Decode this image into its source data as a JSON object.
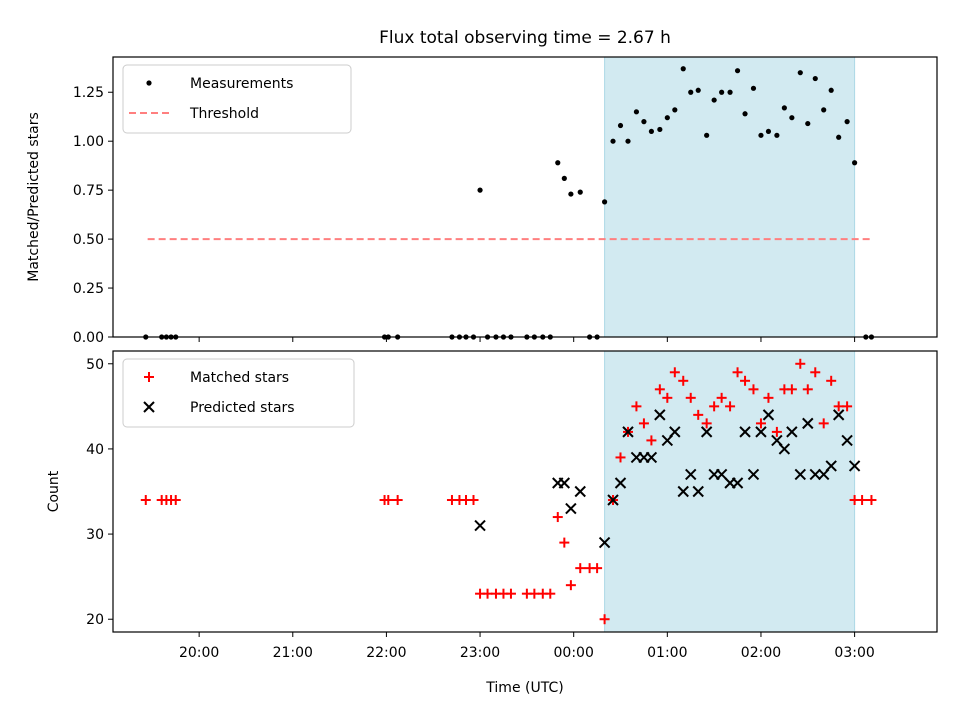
{
  "title": "Flux total observing time = 2.67 h",
  "colors": {
    "measurement": "#000000",
    "threshold": "#ff7f7f",
    "matched": "#ff0000",
    "predicted": "#000000",
    "span": "#add8e6"
  },
  "chart_data": [
    {
      "type": "scatter",
      "ylabel": "Matched/Predicted stars",
      "ylim": [
        0,
        1.43
      ],
      "xlim_hours": [
        19.08,
        27.88
      ],
      "yticks": [
        "0.00",
        "0.25",
        "0.50",
        "0.75",
        "1.00",
        "1.25"
      ],
      "ytick_values": [
        0,
        0.25,
        0.5,
        0.75,
        1.0,
        1.25
      ],
      "legend": {
        "position": "top-left",
        "entries": [
          "Measurements",
          "Threshold"
        ]
      },
      "shaded_span_hours": [
        24.33,
        27.0
      ],
      "threshold": {
        "value": 0.5,
        "x_hours": [
          19.45,
          27.18
        ]
      },
      "series": [
        {
          "name": "Measurements",
          "points": [
            [
              19.43,
              0
            ],
            [
              19.6,
              0
            ],
            [
              19.65,
              0
            ],
            [
              19.7,
              0
            ],
            [
              19.75,
              0
            ],
            [
              21.98,
              0
            ],
            [
              22.02,
              0
            ],
            [
              22.12,
              0
            ],
            [
              22.7,
              0
            ],
            [
              22.78,
              0
            ],
            [
              22.85,
              0
            ],
            [
              22.93,
              0
            ],
            [
              23.0,
              0.75
            ],
            [
              23.08,
              0
            ],
            [
              23.17,
              0
            ],
            [
              23.25,
              0
            ],
            [
              23.33,
              0
            ],
            [
              23.5,
              0
            ],
            [
              23.58,
              0
            ],
            [
              23.67,
              0
            ],
            [
              23.75,
              0
            ],
            [
              23.83,
              0.89
            ],
            [
              23.9,
              0.81
            ],
            [
              23.97,
              0.73
            ],
            [
              24.07,
              0.74
            ],
            [
              24.17,
              0
            ],
            [
              24.25,
              0
            ],
            [
              24.33,
              0.69
            ],
            [
              24.42,
              1.0
            ],
            [
              24.5,
              1.08
            ],
            [
              24.58,
              1.0
            ],
            [
              24.67,
              1.15
            ],
            [
              24.75,
              1.1
            ],
            [
              24.83,
              1.05
            ],
            [
              24.92,
              1.06
            ],
            [
              25.0,
              1.12
            ],
            [
              25.08,
              1.16
            ],
            [
              25.17,
              1.37
            ],
            [
              25.25,
              1.25
            ],
            [
              25.33,
              1.26
            ],
            [
              25.42,
              1.03
            ],
            [
              25.5,
              1.21
            ],
            [
              25.58,
              1.25
            ],
            [
              25.67,
              1.25
            ],
            [
              25.75,
              1.36
            ],
            [
              25.83,
              1.14
            ],
            [
              25.92,
              1.27
            ],
            [
              26.0,
              1.03
            ],
            [
              26.08,
              1.05
            ],
            [
              26.17,
              1.03
            ],
            [
              26.25,
              1.17
            ],
            [
              26.33,
              1.12
            ],
            [
              26.42,
              1.35
            ],
            [
              26.5,
              1.09
            ],
            [
              26.58,
              1.32
            ],
            [
              26.67,
              1.16
            ],
            [
              26.75,
              1.26
            ],
            [
              26.83,
              1.02
            ],
            [
              26.92,
              1.1
            ],
            [
              27.0,
              0.89
            ],
            [
              27.12,
              0
            ],
            [
              27.18,
              0
            ]
          ]
        }
      ]
    },
    {
      "type": "scatter",
      "xlabel": "Time (UTC)",
      "ylabel": "Count",
      "ylim": [
        18.5,
        51.5
      ],
      "xlim_hours": [
        19.08,
        27.88
      ],
      "yticks": [
        "20",
        "30",
        "40",
        "50"
      ],
      "ytick_values": [
        20,
        30,
        40,
        50
      ],
      "xticks": [
        "20:00",
        "21:00",
        "22:00",
        "23:00",
        "00:00",
        "01:00",
        "02:00",
        "03:00"
      ],
      "xtick_hours": [
        20,
        21,
        22,
        23,
        24,
        25,
        26,
        27
      ],
      "legend": {
        "position": "top-left",
        "entries": [
          "Matched stars",
          "Predicted stars"
        ]
      },
      "shaded_span_hours": [
        24.33,
        27.0
      ],
      "series": [
        {
          "name": "Matched stars",
          "points": [
            [
              19.43,
              34
            ],
            [
              19.6,
              34
            ],
            [
              19.65,
              34
            ],
            [
              19.7,
              34
            ],
            [
              19.75,
              34
            ],
            [
              21.98,
              34
            ],
            [
              22.02,
              34
            ],
            [
              22.12,
              34
            ],
            [
              22.7,
              34
            ],
            [
              22.78,
              34
            ],
            [
              22.85,
              34
            ],
            [
              22.93,
              34
            ],
            [
              23.0,
              23
            ],
            [
              23.08,
              23
            ],
            [
              23.17,
              23
            ],
            [
              23.25,
              23
            ],
            [
              23.33,
              23
            ],
            [
              23.5,
              23
            ],
            [
              23.58,
              23
            ],
            [
              23.67,
              23
            ],
            [
              23.75,
              23
            ],
            [
              23.83,
              32
            ],
            [
              23.9,
              29
            ],
            [
              23.97,
              24
            ],
            [
              24.07,
              26
            ],
            [
              24.17,
              26
            ],
            [
              24.25,
              26
            ],
            [
              24.33,
              20
            ],
            [
              24.42,
              34
            ],
            [
              24.5,
              39
            ],
            [
              24.58,
              42
            ],
            [
              24.67,
              45
            ],
            [
              24.75,
              43
            ],
            [
              24.83,
              41
            ],
            [
              24.92,
              47
            ],
            [
              25.0,
              46
            ],
            [
              25.08,
              49
            ],
            [
              25.17,
              48
            ],
            [
              25.25,
              46
            ],
            [
              25.33,
              44
            ],
            [
              25.42,
              43
            ],
            [
              25.5,
              45
            ],
            [
              25.58,
              46
            ],
            [
              25.67,
              45
            ],
            [
              25.75,
              49
            ],
            [
              25.83,
              48
            ],
            [
              25.92,
              47
            ],
            [
              26.0,
              43
            ],
            [
              26.08,
              46
            ],
            [
              26.17,
              42
            ],
            [
              26.25,
              47
            ],
            [
              26.33,
              47
            ],
            [
              26.42,
              50
            ],
            [
              26.5,
              47
            ],
            [
              26.58,
              49
            ],
            [
              26.67,
              43
            ],
            [
              26.75,
              48
            ],
            [
              26.83,
              45
            ],
            [
              26.92,
              45
            ],
            [
              27.0,
              34
            ],
            [
              27.08,
              34
            ],
            [
              27.18,
              34
            ]
          ]
        },
        {
          "name": "Predicted stars",
          "points": [
            [
              23.0,
              31
            ],
            [
              23.83,
              36
            ],
            [
              23.9,
              36
            ],
            [
              23.97,
              33
            ],
            [
              24.07,
              35
            ],
            [
              24.33,
              29
            ],
            [
              24.42,
              34
            ],
            [
              24.5,
              36
            ],
            [
              24.58,
              42
            ],
            [
              24.67,
              39
            ],
            [
              24.75,
              39
            ],
            [
              24.83,
              39
            ],
            [
              24.92,
              44
            ],
            [
              25.0,
              41
            ],
            [
              25.08,
              42
            ],
            [
              25.17,
              35
            ],
            [
              25.25,
              37
            ],
            [
              25.33,
              35
            ],
            [
              25.42,
              42
            ],
            [
              25.5,
              37
            ],
            [
              25.58,
              37
            ],
            [
              25.67,
              36
            ],
            [
              25.75,
              36
            ],
            [
              25.83,
              42
            ],
            [
              25.92,
              37
            ],
            [
              26.0,
              42
            ],
            [
              26.08,
              44
            ],
            [
              26.17,
              41
            ],
            [
              26.25,
              40
            ],
            [
              26.33,
              42
            ],
            [
              26.42,
              37
            ],
            [
              26.5,
              43
            ],
            [
              26.58,
              37
            ],
            [
              26.67,
              37
            ],
            [
              26.75,
              38
            ],
            [
              26.83,
              44
            ],
            [
              26.92,
              41
            ],
            [
              27.0,
              38
            ]
          ]
        }
      ]
    }
  ]
}
